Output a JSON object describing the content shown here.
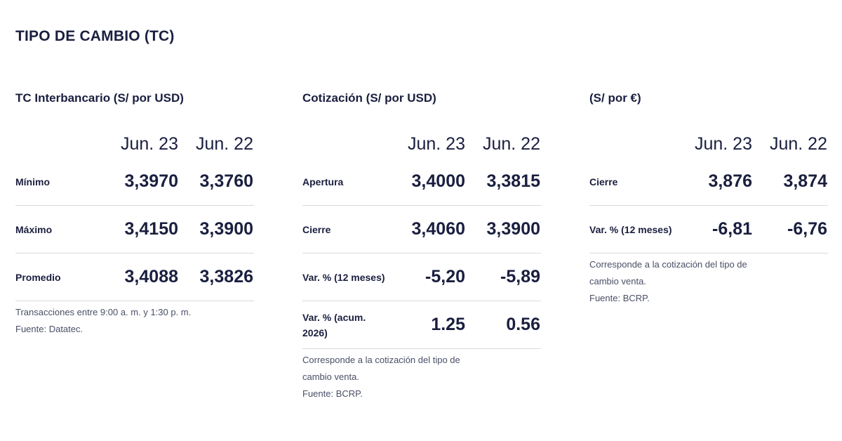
{
  "title": "TIPO DE CAMBIO (TC)",
  "panels": [
    {
      "title": "TC Interbancario (S/ por USD)",
      "columns": [
        "Jun. 23",
        "Jun. 22"
      ],
      "rows": [
        {
          "label": "Mínimo",
          "values": [
            "3,3970",
            "3,3760"
          ]
        },
        {
          "label": "Máximo",
          "values": [
            "3,4150",
            "3,3900"
          ]
        },
        {
          "label": "Promedio",
          "values": [
            "3,4088",
            "3,3826"
          ]
        }
      ],
      "note_lines": [
        "Transacciones entre 9:00 a. m. y 1:30 p. m.",
        "Fuente: Datatec."
      ]
    },
    {
      "title": "Cotización (S/ por USD)",
      "columns": [
        "Jun. 23",
        "Jun. 22"
      ],
      "rows": [
        {
          "label": "Apertura",
          "values": [
            "3,4000",
            "3,3815"
          ]
        },
        {
          "label": "Cierre",
          "values": [
            "3,4060",
            "3,3900"
          ]
        },
        {
          "label": "Var. % (12 meses)",
          "values": [
            "-5,20",
            "-5,89"
          ]
        },
        {
          "label": "Var. % (acum. 2026)",
          "values": [
            "1.25",
            "0.56"
          ]
        }
      ],
      "note_lines": [
        "Corresponde a la cotización del tipo de",
        "cambio venta.",
        "Fuente: BCRP."
      ]
    },
    {
      "title": "(S/ por €)",
      "columns": [
        "Jun. 23",
        "Jun. 22"
      ],
      "rows": [
        {
          "label": "Cierre",
          "values": [
            "3,876",
            "3,874"
          ]
        },
        {
          "label": "Var. % (12 meses)",
          "values": [
            "-6,81",
            "-6,76"
          ]
        }
      ],
      "note_lines": [
        "Corresponde a la cotización del tipo de",
        "cambio venta.",
        "Fuente: BCRP."
      ]
    }
  ]
}
